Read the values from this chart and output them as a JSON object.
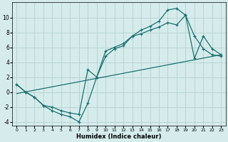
{
  "xlabel": "Humidex (Indice chaleur)",
  "background_color": "#d6ecec",
  "grid_color": "#b8d4d4",
  "line_color": "#1a7070",
  "xlim": [
    -0.5,
    23.5
  ],
  "ylim": [
    -4.5,
    12
  ],
  "xticks": [
    0,
    1,
    2,
    3,
    4,
    5,
    6,
    7,
    8,
    9,
    10,
    11,
    12,
    13,
    14,
    15,
    16,
    17,
    18,
    19,
    20,
    21,
    22,
    23
  ],
  "yticks": [
    -4,
    -2,
    0,
    2,
    4,
    6,
    8,
    10
  ],
  "line1_x": [
    0,
    1,
    2,
    3,
    4,
    5,
    6,
    7,
    8,
    9,
    10,
    11,
    12,
    13,
    14,
    15,
    16,
    17,
    18,
    19,
    20,
    21,
    22,
    23
  ],
  "line1_y": [
    1.0,
    0.0,
    -0.7,
    -1.8,
    -2.5,
    -3.0,
    -3.3,
    -4.0,
    -1.5,
    2.0,
    4.8,
    5.8,
    6.2,
    7.5,
    7.8,
    8.3,
    8.7,
    9.3,
    9.0,
    10.3,
    7.5,
    5.8,
    5.0,
    4.8
  ],
  "line2_x": [
    0,
    1,
    2,
    3,
    4,
    5,
    6,
    7,
    8,
    9,
    10,
    11,
    12,
    13,
    14,
    15,
    16,
    17,
    18,
    19,
    20,
    21,
    22,
    23
  ],
  "line2_y": [
    1.0,
    0.0,
    -0.7,
    -1.8,
    -2.0,
    -2.5,
    -2.8,
    -3.0,
    3.0,
    2.0,
    5.5,
    6.0,
    6.5,
    7.5,
    8.3,
    8.8,
    9.5,
    11.0,
    11.2,
    10.3,
    4.5,
    7.5,
    5.8,
    5.0
  ],
  "line3_x": [
    0,
    23
  ],
  "line3_y": [
    -0.2,
    5.0
  ]
}
